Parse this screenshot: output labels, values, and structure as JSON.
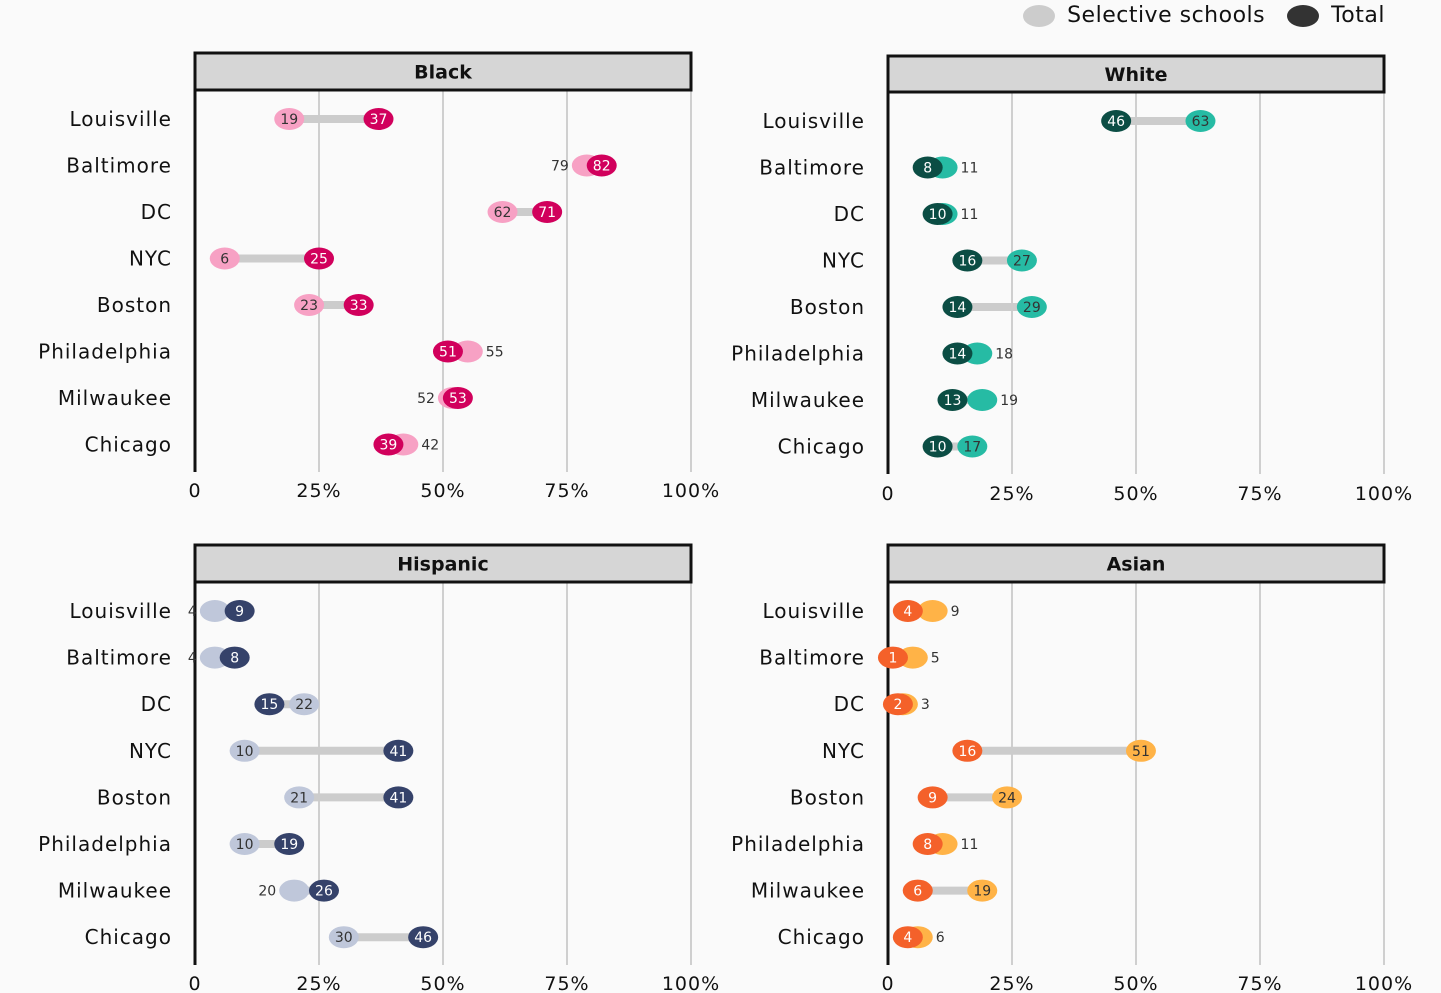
{
  "legend": {
    "selective_label": "Selective schools",
    "total_label": "Total",
    "selective_color": "#cccccc",
    "total_color": "#333333"
  },
  "chart_data": [
    {
      "type": "dumbbell",
      "title": "Black",
      "categories": [
        "Louisville",
        "Baltimore",
        "DC",
        "NYC",
        "Boston",
        "Philadelphia",
        "Milwaukee",
        "Chicago"
      ],
      "series": [
        {
          "name": "Selective schools",
          "values": [
            19,
            79,
            62,
            6,
            23,
            55,
            52,
            42
          ],
          "color": "#f7a1c4"
        },
        {
          "name": "Total",
          "values": [
            37,
            82,
            71,
            25,
            33,
            51,
            53,
            39
          ],
          "color": "#d1005c"
        }
      ],
      "xlim": [
        0,
        100
      ],
      "xticks": [
        "0",
        "25%",
        "50%",
        "75%",
        "100%"
      ],
      "grid": true
    },
    {
      "type": "dumbbell",
      "title": "White",
      "categories": [
        "Louisville",
        "Baltimore",
        "DC",
        "NYC",
        "Boston",
        "Philadelphia",
        "Milwaukee",
        "Chicago"
      ],
      "series": [
        {
          "name": "Selective schools",
          "values": [
            63,
            11,
            11,
            27,
            29,
            18,
            19,
            17
          ],
          "color": "#26bba4"
        },
        {
          "name": "Total",
          "values": [
            46,
            8,
            10,
            16,
            14,
            14,
            13,
            10
          ],
          "color": "#0b4d44"
        }
      ],
      "xlim": [
        0,
        100
      ],
      "xticks": [
        "0",
        "25%",
        "50%",
        "75%",
        "100%"
      ],
      "grid": true
    },
    {
      "type": "dumbbell",
      "title": "Hispanic",
      "categories": [
        "Louisville",
        "Baltimore",
        "DC",
        "NYC",
        "Boston",
        "Philadelphia",
        "Milwaukee",
        "Chicago"
      ],
      "series": [
        {
          "name": "Selective schools",
          "values": [
            4,
            4,
            22,
            10,
            21,
            10,
            20,
            30
          ],
          "color": "#bfc7da"
        },
        {
          "name": "Total",
          "values": [
            9,
            8,
            15,
            41,
            41,
            19,
            26,
            46
          ],
          "color": "#35426a"
        }
      ],
      "xlim": [
        0,
        100
      ],
      "xticks": [
        "0",
        "25%",
        "50%",
        "75%",
        "100%"
      ],
      "grid": true
    },
    {
      "type": "dumbbell",
      "title": "Asian",
      "categories": [
        "Louisville",
        "Baltimore",
        "DC",
        "NYC",
        "Boston",
        "Philadelphia",
        "Milwaukee",
        "Chicago"
      ],
      "series": [
        {
          "name": "Selective schools",
          "values": [
            9,
            5,
            3,
            51,
            24,
            11,
            19,
            6
          ],
          "color": "#ffb347"
        },
        {
          "name": "Total",
          "values": [
            4,
            1,
            2,
            16,
            9,
            8,
            6,
            4
          ],
          "color": "#f4612a"
        }
      ],
      "xlim": [
        0,
        100
      ],
      "xticks": [
        "0",
        "25%",
        "50%",
        "75%",
        "100%"
      ],
      "grid": true
    }
  ]
}
